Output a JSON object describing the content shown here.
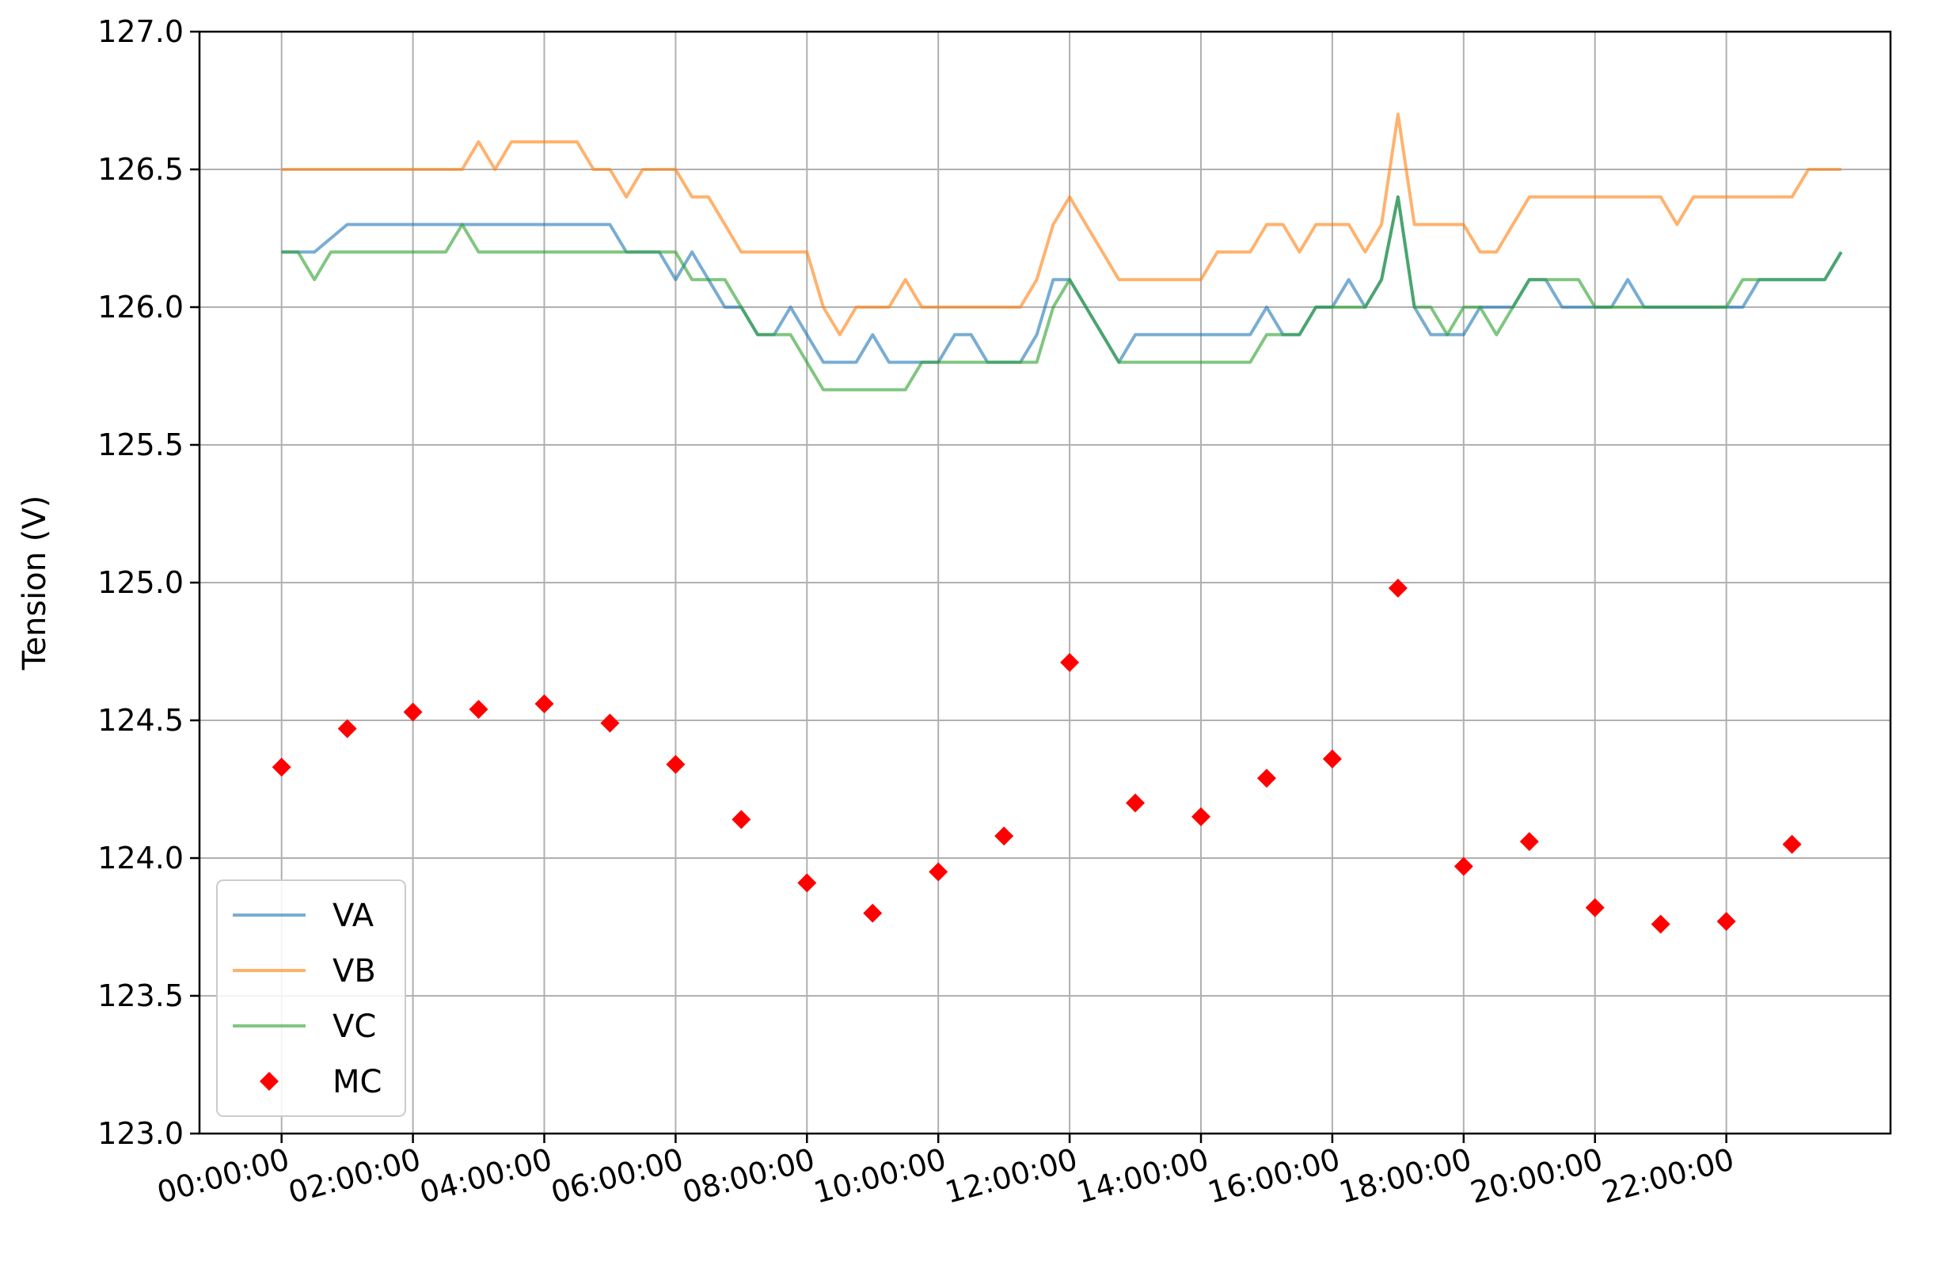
{
  "chart_data": {
    "type": "line",
    "title": "",
    "xlabel": "",
    "ylabel": "Tension (V)",
    "ylim": [
      123.0,
      127.0
    ],
    "yticks": [
      123.0,
      123.5,
      124.0,
      124.5,
      125.0,
      125.5,
      126.0,
      126.5,
      127.0
    ],
    "ytick_labels": [
      "123.0",
      "123.5",
      "124.0",
      "124.5",
      "125.0",
      "125.5",
      "126.0",
      "126.5",
      "127.0"
    ],
    "xlim_hours": [
      -1.25,
      24.5
    ],
    "xticks_hours": [
      0,
      2,
      4,
      6,
      8,
      10,
      12,
      14,
      16,
      18,
      20,
      22
    ],
    "xtick_labels": [
      "00:00:00",
      "02:00:00",
      "04:00:00",
      "06:00:00",
      "08:00:00",
      "10:00:00",
      "12:00:00",
      "14:00:00",
      "16:00:00",
      "18:00:00",
      "20:00:00",
      "22:00:00"
    ],
    "grid": true,
    "legend_position": "lower-left",
    "series": [
      {
        "name": "VA",
        "kind": "line",
        "color": "#1f77b4",
        "points": [
          [
            0.0,
            126.2
          ],
          [
            0.5,
            126.2
          ],
          [
            1.0,
            126.3
          ],
          [
            2.0,
            126.3
          ],
          [
            3.0,
            126.3
          ],
          [
            4.0,
            126.3
          ],
          [
            5.0,
            126.3
          ],
          [
            5.25,
            126.2
          ],
          [
            5.75,
            126.2
          ],
          [
            6.0,
            126.1
          ],
          [
            6.25,
            126.2
          ],
          [
            6.5,
            126.1
          ],
          [
            6.75,
            126.0
          ],
          [
            7.0,
            126.0
          ],
          [
            7.25,
            125.9
          ],
          [
            7.5,
            125.9
          ],
          [
            7.75,
            126.0
          ],
          [
            8.0,
            125.9
          ],
          [
            8.25,
            125.8
          ],
          [
            8.75,
            125.8
          ],
          [
            9.0,
            125.9
          ],
          [
            9.25,
            125.8
          ],
          [
            9.75,
            125.8
          ],
          [
            10.0,
            125.8
          ],
          [
            10.25,
            125.9
          ],
          [
            10.5,
            125.9
          ],
          [
            10.75,
            125.8
          ],
          [
            11.25,
            125.8
          ],
          [
            11.5,
            125.9
          ],
          [
            11.75,
            126.1
          ],
          [
            12.0,
            126.1
          ],
          [
            12.25,
            126.0
          ],
          [
            12.5,
            125.9
          ],
          [
            12.75,
            125.8
          ],
          [
            13.0,
            125.9
          ],
          [
            13.5,
            125.9
          ],
          [
            14.0,
            125.9
          ],
          [
            14.5,
            125.9
          ],
          [
            14.75,
            125.9
          ],
          [
            15.0,
            126.0
          ],
          [
            15.25,
            125.9
          ],
          [
            15.5,
            125.9
          ],
          [
            15.75,
            126.0
          ],
          [
            16.0,
            126.0
          ],
          [
            16.25,
            126.1
          ],
          [
            16.5,
            126.0
          ],
          [
            16.75,
            126.1
          ],
          [
            17.0,
            126.4
          ],
          [
            17.25,
            126.0
          ],
          [
            17.5,
            125.9
          ],
          [
            17.75,
            125.9
          ],
          [
            18.0,
            125.9
          ],
          [
            18.25,
            126.0
          ],
          [
            18.75,
            126.0
          ],
          [
            19.0,
            126.1
          ],
          [
            19.25,
            126.1
          ],
          [
            19.5,
            126.0
          ],
          [
            20.0,
            126.0
          ],
          [
            20.25,
            126.0
          ],
          [
            20.5,
            126.1
          ],
          [
            20.75,
            126.0
          ],
          [
            21.5,
            126.0
          ],
          [
            22.0,
            126.0
          ],
          [
            22.25,
            126.0
          ],
          [
            22.5,
            126.1
          ],
          [
            23.0,
            126.1
          ],
          [
            23.5,
            126.1
          ],
          [
            23.75,
            126.2
          ]
        ]
      },
      {
        "name": "VB",
        "kind": "line",
        "color": "#ff7f0e",
        "points": [
          [
            0.0,
            126.5
          ],
          [
            1.0,
            126.5
          ],
          [
            2.0,
            126.5
          ],
          [
            2.75,
            126.5
          ],
          [
            3.0,
            126.6
          ],
          [
            3.25,
            126.5
          ],
          [
            3.5,
            126.6
          ],
          [
            4.0,
            126.6
          ],
          [
            4.5,
            126.6
          ],
          [
            4.75,
            126.5
          ],
          [
            5.0,
            126.5
          ],
          [
            5.25,
            126.4
          ],
          [
            5.5,
            126.5
          ],
          [
            6.0,
            126.5
          ],
          [
            6.25,
            126.4
          ],
          [
            6.5,
            126.4
          ],
          [
            7.0,
            126.2
          ],
          [
            7.5,
            126.2
          ],
          [
            8.0,
            126.2
          ],
          [
            8.25,
            126.0
          ],
          [
            8.5,
            125.9
          ],
          [
            8.75,
            126.0
          ],
          [
            9.0,
            126.0
          ],
          [
            9.25,
            126.0
          ],
          [
            9.5,
            126.1
          ],
          [
            9.75,
            126.0
          ],
          [
            10.0,
            126.0
          ],
          [
            11.0,
            126.0
          ],
          [
            11.25,
            126.0
          ],
          [
            11.5,
            126.1
          ],
          [
            11.75,
            126.3
          ],
          [
            12.0,
            126.4
          ],
          [
            12.25,
            126.3
          ],
          [
            12.5,
            126.2
          ],
          [
            12.75,
            126.1
          ],
          [
            13.0,
            126.1
          ],
          [
            13.5,
            126.1
          ],
          [
            14.0,
            126.1
          ],
          [
            14.25,
            126.2
          ],
          [
            14.75,
            126.2
          ],
          [
            15.0,
            126.3
          ],
          [
            15.25,
            126.3
          ],
          [
            15.5,
            126.2
          ],
          [
            15.75,
            126.3
          ],
          [
            16.0,
            126.3
          ],
          [
            16.25,
            126.3
          ],
          [
            16.5,
            126.2
          ],
          [
            16.75,
            126.3
          ],
          [
            17.0,
            126.7
          ],
          [
            17.25,
            126.3
          ],
          [
            17.5,
            126.3
          ],
          [
            18.0,
            126.3
          ],
          [
            18.25,
            126.2
          ],
          [
            18.5,
            126.2
          ],
          [
            18.75,
            126.3
          ],
          [
            19.0,
            126.4
          ],
          [
            19.5,
            126.4
          ],
          [
            20.0,
            126.4
          ],
          [
            21.0,
            126.4
          ],
          [
            21.25,
            126.3
          ],
          [
            21.5,
            126.4
          ],
          [
            22.0,
            126.4
          ],
          [
            23.0,
            126.4
          ],
          [
            23.25,
            126.5
          ],
          [
            23.75,
            126.5
          ]
        ]
      },
      {
        "name": "VC",
        "kind": "line",
        "color": "#2ca02c",
        "points": [
          [
            0.0,
            126.2
          ],
          [
            0.25,
            126.2
          ],
          [
            0.5,
            126.1
          ],
          [
            0.75,
            126.2
          ],
          [
            1.0,
            126.2
          ],
          [
            2.0,
            126.2
          ],
          [
            2.5,
            126.2
          ],
          [
            2.75,
            126.3
          ],
          [
            3.0,
            126.2
          ],
          [
            4.0,
            126.2
          ],
          [
            5.0,
            126.2
          ],
          [
            5.75,
            126.2
          ],
          [
            6.0,
            126.2
          ],
          [
            6.25,
            126.1
          ],
          [
            6.75,
            126.1
          ],
          [
            7.0,
            126.0
          ],
          [
            7.25,
            125.9
          ],
          [
            7.5,
            125.9
          ],
          [
            7.75,
            125.9
          ],
          [
            8.0,
            125.8
          ],
          [
            8.25,
            125.7
          ],
          [
            9.0,
            125.7
          ],
          [
            9.5,
            125.7
          ],
          [
            9.75,
            125.8
          ],
          [
            10.0,
            125.8
          ],
          [
            11.0,
            125.8
          ],
          [
            11.5,
            125.8
          ],
          [
            11.75,
            126.0
          ],
          [
            12.0,
            126.1
          ],
          [
            12.25,
            126.0
          ],
          [
            12.5,
            125.9
          ],
          [
            12.75,
            125.8
          ],
          [
            13.0,
            125.8
          ],
          [
            14.0,
            125.8
          ],
          [
            14.75,
            125.8
          ],
          [
            15.0,
            125.9
          ],
          [
            15.5,
            125.9
          ],
          [
            15.75,
            126.0
          ],
          [
            16.0,
            126.0
          ],
          [
            16.5,
            126.0
          ],
          [
            16.75,
            126.1
          ],
          [
            17.0,
            126.4
          ],
          [
            17.25,
            126.0
          ],
          [
            17.5,
            126.0
          ],
          [
            17.75,
            125.9
          ],
          [
            18.0,
            126.0
          ],
          [
            18.25,
            126.0
          ],
          [
            18.5,
            125.9
          ],
          [
            18.75,
            126.0
          ],
          [
            19.0,
            126.1
          ],
          [
            19.5,
            126.1
          ],
          [
            19.75,
            126.1
          ],
          [
            20.0,
            126.0
          ],
          [
            21.0,
            126.0
          ],
          [
            22.0,
            126.0
          ],
          [
            22.25,
            126.1
          ],
          [
            23.0,
            126.1
          ],
          [
            23.5,
            126.1
          ],
          [
            23.75,
            126.2
          ]
        ]
      },
      {
        "name": "MC",
        "kind": "scatter",
        "marker": "diamond",
        "color": "#ff0000",
        "points": [
          [
            0,
            124.33
          ],
          [
            1,
            124.47
          ],
          [
            2,
            124.53
          ],
          [
            3,
            124.54
          ],
          [
            4,
            124.56
          ],
          [
            5,
            124.49
          ],
          [
            6,
            124.34
          ],
          [
            7,
            124.14
          ],
          [
            8,
            123.91
          ],
          [
            9,
            123.8
          ],
          [
            10,
            123.95
          ],
          [
            11,
            124.08
          ],
          [
            12,
            124.71
          ],
          [
            13,
            124.2
          ],
          [
            14,
            124.15
          ],
          [
            15,
            124.29
          ],
          [
            16,
            124.36
          ],
          [
            17,
            124.98
          ],
          [
            18,
            123.97
          ],
          [
            19,
            124.06
          ],
          [
            20,
            123.82
          ],
          [
            21,
            123.76
          ],
          [
            22,
            123.77
          ],
          [
            23,
            124.05
          ]
        ]
      }
    ]
  }
}
